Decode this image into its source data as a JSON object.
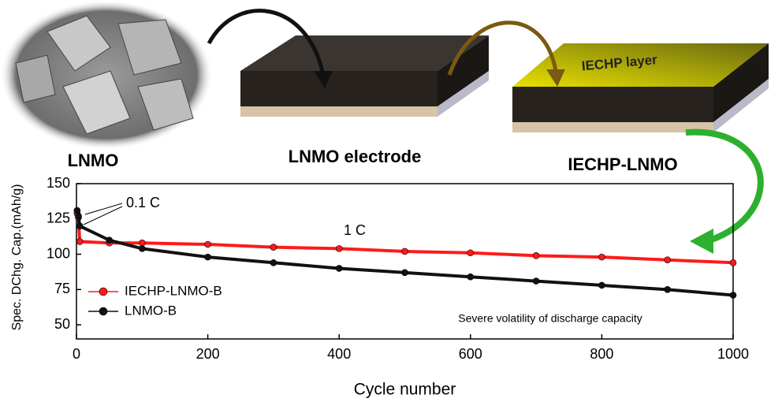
{
  "diagram": {
    "labels": [
      "LNMO",
      "LNMO electrode",
      "IECHP-LNMO"
    ],
    "layer_label": "IECHP layer"
  },
  "chart_data": {
    "type": "line",
    "y_label": "Spec. DChg. Cap.(mAh/g)",
    "x_label": "Cycle number",
    "annotations": [
      "0.1 C",
      "1 C",
      "Severe volatility of discharge capacity"
    ],
    "x": [
      1,
      3,
      5,
      50,
      100,
      200,
      300,
      400,
      500,
      600,
      700,
      800,
      900,
      1000
    ],
    "series": [
      {
        "name": "IECHP-LNMO-B",
        "color": "#ff1a1a",
        "values": [
          129,
          126,
          109,
          108,
          108,
          107,
          105,
          104,
          102,
          101,
          99,
          98,
          96,
          94
        ]
      },
      {
        "name": "LNMO-B",
        "color": "#111111",
        "values": [
          131,
          127,
          120,
          110,
          104,
          98,
          94,
          90,
          87,
          84,
          81,
          78,
          75,
          71
        ]
      }
    ],
    "xlim": [
      0,
      1000
    ],
    "ylim": [
      40,
      150
    ],
    "xticks": [
      0,
      200,
      400,
      600,
      800,
      1000
    ],
    "yticks": [
      50,
      75,
      100,
      125,
      150
    ],
    "legend": "lower left"
  }
}
